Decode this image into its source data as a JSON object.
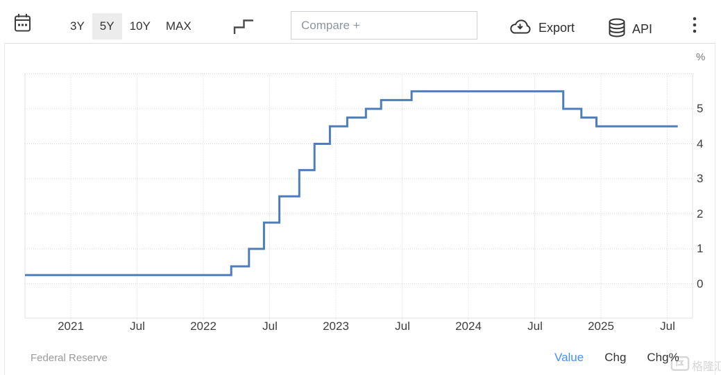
{
  "toolbar": {
    "ranges": [
      {
        "label": "3Y",
        "active": false
      },
      {
        "label": "5Y",
        "active": true
      },
      {
        "label": "10Y",
        "active": false
      },
      {
        "label": "MAX",
        "active": false
      }
    ],
    "compare_placeholder": "Compare +",
    "export_label": "Export",
    "api_label": "API"
  },
  "chart": {
    "unit_label": "%"
  },
  "chart_data": {
    "type": "line",
    "style": "step-after",
    "line_color": "#4d7eba",
    "unit": "%",
    "grid": "dotted",
    "legend": "none",
    "ylim": [
      -1,
      6
    ],
    "y_ticks": [
      0,
      1,
      2,
      3,
      4,
      5
    ],
    "y_gridlines": [
      0,
      1,
      2,
      3,
      4,
      5,
      6
    ],
    "x_ticks": [
      {
        "label": "2021",
        "date": "2021-01-01"
      },
      {
        "label": "Jul",
        "date": "2021-07-01"
      },
      {
        "label": "2022",
        "date": "2022-01-01"
      },
      {
        "label": "Jul",
        "date": "2022-07-01"
      },
      {
        "label": "2023",
        "date": "2023-01-01"
      },
      {
        "label": "Jul",
        "date": "2023-07-01"
      },
      {
        "label": "2024",
        "date": "2024-01-01"
      },
      {
        "label": "Jul",
        "date": "2024-07-01"
      },
      {
        "label": "2025",
        "date": "2025-01-01"
      },
      {
        "label": "Jul",
        "date": "2025-07-01"
      }
    ],
    "series": [
      {
        "color": "#4d7eba",
        "end_date": "2025-07-30",
        "points": [
          {
            "date": "2020-08-26",
            "value": 0.25
          },
          {
            "date": "2022-03-17",
            "value": 0.5
          },
          {
            "date": "2022-05-05",
            "value": 1.0
          },
          {
            "date": "2022-06-16",
            "value": 1.75
          },
          {
            "date": "2022-07-28",
            "value": 2.5
          },
          {
            "date": "2022-09-22",
            "value": 3.25
          },
          {
            "date": "2022-11-03",
            "value": 4.0
          },
          {
            "date": "2022-12-15",
            "value": 4.5
          },
          {
            "date": "2023-02-02",
            "value": 4.75
          },
          {
            "date": "2023-03-23",
            "value": 5.0
          },
          {
            "date": "2023-05-04",
            "value": 5.25
          },
          {
            "date": "2023-07-27",
            "value": 5.5
          },
          {
            "date": "2024-09-19",
            "value": 5.0
          },
          {
            "date": "2024-11-08",
            "value": 4.75
          },
          {
            "date": "2024-12-19",
            "value": 4.5
          }
        ]
      }
    ]
  },
  "footer": {
    "source": "Federal Reserve",
    "links": [
      {
        "label": "Value",
        "active": true
      },
      {
        "label": "Chg",
        "active": false
      },
      {
        "label": "Chg%",
        "active": false
      }
    ],
    "watermark": "格隆汇"
  }
}
